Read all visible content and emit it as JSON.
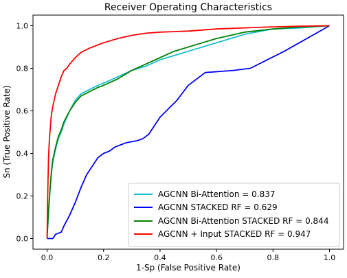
{
  "chart_data": {
    "type": "line",
    "title": "Receiver Operating Characteristics",
    "xlabel": "1-Sp (False Positive Rate)",
    "ylabel": "Sn (True Positive Rate)",
    "xlim": [
      -0.05,
      1.05
    ],
    "ylim": [
      -0.05,
      1.05
    ],
    "x_ticks": [
      0.0,
      0.2,
      0.4,
      0.6,
      0.8,
      1.0
    ],
    "y_ticks": [
      0.0,
      0.2,
      0.4,
      0.6,
      0.8,
      1.0
    ],
    "x_tick_labels": [
      "0.0",
      "0.2",
      "0.4",
      "0.6",
      "0.8",
      "1.0"
    ],
    "y_tick_labels": [
      "0.0",
      "0.2",
      "0.4",
      "0.6",
      "0.8",
      "1.0"
    ],
    "grid": false,
    "legend_position": "lower-right",
    "series": [
      {
        "name": "AGCNN Bi-Attention = 0.837",
        "color": "#17becf",
        "x": [
          0.0,
          0.005,
          0.01,
          0.015,
          0.02,
          0.03,
          0.04,
          0.05,
          0.06,
          0.08,
          0.1,
          0.12,
          0.15,
          0.18,
          0.2,
          0.25,
          0.3,
          0.35,
          0.4,
          0.45,
          0.5,
          0.55,
          0.6,
          0.65,
          0.7,
          0.8,
          0.9,
          1.0
        ],
        "y": [
          0.0,
          0.12,
          0.22,
          0.3,
          0.36,
          0.42,
          0.47,
          0.5,
          0.54,
          0.6,
          0.65,
          0.68,
          0.7,
          0.72,
          0.73,
          0.76,
          0.79,
          0.81,
          0.84,
          0.86,
          0.88,
          0.9,
          0.92,
          0.94,
          0.96,
          0.985,
          0.99,
          1.0
        ]
      },
      {
        "name": "AGCNN STACKED RF = 0.629",
        "color": "#0000ff",
        "x": [
          0.0,
          0.02,
          0.03,
          0.05,
          0.06,
          0.08,
          0.09,
          0.1,
          0.12,
          0.14,
          0.16,
          0.18,
          0.2,
          0.22,
          0.24,
          0.28,
          0.32,
          0.34,
          0.36,
          0.4,
          0.46,
          0.5,
          0.56,
          0.66,
          0.72,
          0.84,
          1.0
        ],
        "y": [
          0.0,
          0.0,
          0.02,
          0.03,
          0.06,
          0.11,
          0.14,
          0.17,
          0.24,
          0.3,
          0.34,
          0.38,
          0.4,
          0.41,
          0.43,
          0.45,
          0.46,
          0.47,
          0.49,
          0.57,
          0.65,
          0.72,
          0.78,
          0.79,
          0.8,
          0.88,
          1.0
        ]
      },
      {
        "name": "AGCNN Bi-Attention STACKED RF = 0.844",
        "color": "#008000",
        "x": [
          0.0,
          0.005,
          0.01,
          0.015,
          0.02,
          0.03,
          0.04,
          0.05,
          0.06,
          0.08,
          0.1,
          0.12,
          0.15,
          0.18,
          0.2,
          0.25,
          0.3,
          0.35,
          0.4,
          0.45,
          0.5,
          0.55,
          0.6,
          0.65,
          0.7,
          0.8,
          0.9,
          1.0
        ],
        "y": [
          0.0,
          0.13,
          0.23,
          0.31,
          0.37,
          0.43,
          0.48,
          0.51,
          0.55,
          0.6,
          0.64,
          0.67,
          0.69,
          0.71,
          0.72,
          0.75,
          0.79,
          0.82,
          0.85,
          0.88,
          0.9,
          0.92,
          0.94,
          0.955,
          0.97,
          0.985,
          0.995,
          1.0
        ]
      },
      {
        "name": "AGCNN + Input STACKED RF = 0.947",
        "color": "#ff0000",
        "x": [
          0.0,
          0.002,
          0.005,
          0.008,
          0.01,
          0.015,
          0.02,
          0.03,
          0.04,
          0.05,
          0.06,
          0.07,
          0.08,
          0.1,
          0.12,
          0.15,
          0.2,
          0.25,
          0.3,
          0.35,
          0.4,
          0.5,
          0.6,
          0.7,
          0.8,
          0.9,
          1.0
        ],
        "y": [
          0.0,
          0.2,
          0.38,
          0.46,
          0.5,
          0.58,
          0.62,
          0.68,
          0.72,
          0.76,
          0.79,
          0.8,
          0.82,
          0.85,
          0.875,
          0.895,
          0.92,
          0.94,
          0.955,
          0.965,
          0.97,
          0.975,
          0.985,
          0.99,
          0.995,
          0.998,
          1.0
        ]
      }
    ]
  }
}
